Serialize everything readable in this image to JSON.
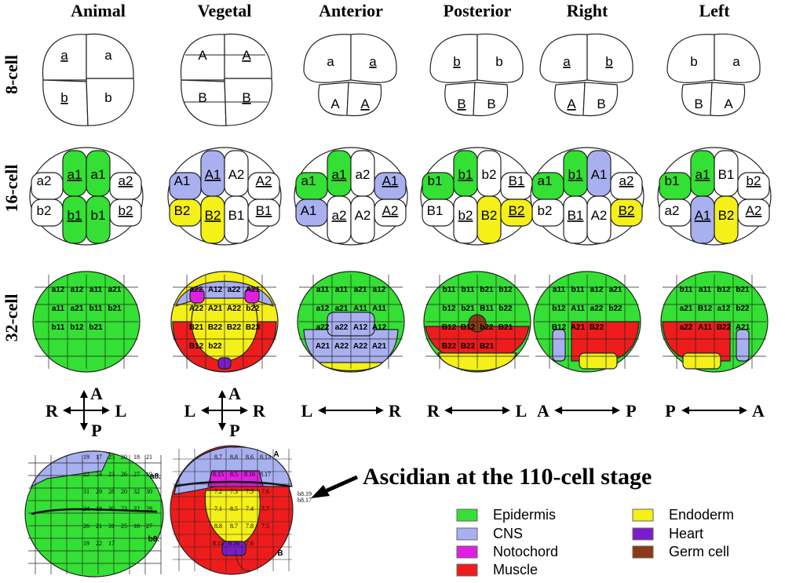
{
  "columns": [
    "Animal",
    "Vegetal",
    "Anterior",
    "Posterior",
    "Right",
    "Left"
  ],
  "rows": [
    "8-cell",
    "16-cell",
    "32-cell"
  ],
  "colors": {
    "epidermis": "#33e033",
    "cns": "#a8b0f0",
    "notochord": "#e020e0",
    "muscle": "#ee1c1c",
    "endoderm": "#f4f018",
    "heart": "#7a1ccc",
    "germ": "#8a3a18",
    "white": "#ffffff"
  },
  "axes": [
    {
      "type": "cross",
      "h": [
        "R",
        "L"
      ],
      "v": [
        "A",
        "P"
      ]
    },
    {
      "type": "cross",
      "h": [
        "L",
        "R"
      ],
      "v": [
        "A",
        "P"
      ]
    },
    {
      "type": "line",
      "ends": [
        "L",
        "R"
      ]
    },
    {
      "type": "line",
      "ends": [
        "R",
        "L"
      ]
    },
    {
      "type": "line",
      "ends": [
        "A",
        "P"
      ]
    },
    {
      "type": "line",
      "ends": [
        "P",
        "A"
      ]
    }
  ],
  "title": "Ascidian at the 110-cell stage",
  "legend": [
    {
      "label": "Epidermis",
      "color": "#33e033"
    },
    {
      "label": "CNS",
      "color": "#a8b0f0"
    },
    {
      "label": "Notochord",
      "color": "#e020e0"
    },
    {
      "label": "Muscle",
      "color": "#ee1c1c"
    },
    {
      "label": "Endoderm",
      "color": "#f4f018"
    },
    {
      "label": "Heart",
      "color": "#7a1ccc"
    },
    {
      "label": "Germ cell",
      "color": "#8a3a18"
    }
  ],
  "cell8": [
    [
      "a",
      "a",
      "b",
      "b"
    ],
    [
      "A",
      "A",
      "B",
      "B"
    ],
    [
      "a",
      "a",
      "A",
      "A"
    ],
    [
      "b",
      "b",
      "B",
      "B"
    ],
    [
      "a",
      "b",
      "A",
      "B"
    ],
    [
      "b",
      "a",
      "B",
      "A"
    ]
  ],
  "cell16": [
    [
      "a2",
      "a1",
      "a1",
      "a2",
      "b2",
      "b1",
      "b1",
      "b2"
    ],
    [
      "A1",
      "A1",
      "A2",
      "A2",
      "B2",
      "B2",
      "B1",
      "B1"
    ],
    [
      "a1",
      "a1",
      "a2",
      "A1",
      "A1",
      "a2",
      "A2",
      "A2"
    ],
    [
      "b1",
      "b1",
      "b2",
      "B1",
      "B1",
      "b2",
      "B2",
      "B2"
    ],
    [
      "a1",
      "b1",
      "A1",
      "a2",
      "b2",
      "B1",
      "A2",
      "B2"
    ],
    [
      "b1",
      "a1",
      "B1",
      "b2",
      "a2",
      "A1",
      "B2",
      "A2"
    ]
  ],
  "cell32": [
    [
      "a12",
      "a12",
      "a11",
      "a21",
      "a11",
      "a21",
      "b11",
      "b21",
      "b11",
      "b12",
      "b21"
    ],
    [
      "a22",
      "A12",
      "a22",
      "A21",
      "A22",
      "A21",
      "A22",
      "b22",
      "B21",
      "B22",
      "B22",
      "B23",
      "B12",
      "b22"
    ],
    [
      "a11",
      "a11",
      "a21",
      "a12",
      "a12",
      "a21",
      "A11",
      "A11",
      "a22",
      "a22",
      "A12",
      "A12",
      "A21",
      "A22",
      "A22",
      "A21"
    ],
    [
      "b11",
      "b11",
      "b21",
      "b12",
      "b12",
      "b21",
      "B11",
      "b22",
      "B12",
      "B12",
      "b22",
      "B21",
      "B22",
      "B22",
      "B21"
    ],
    [
      "a11",
      "b11",
      "a12",
      "a21",
      "b12",
      "A11",
      "a22",
      "b22",
      "B12",
      "A21",
      "B22"
    ],
    [
      "b11",
      "a11",
      "b12",
      "b21",
      "a21",
      "B12",
      "a12",
      "b22",
      "a22",
      "A11",
      "B22",
      "A21"
    ]
  ],
  "e110": {
    "animal_labels": [
      "a8.",
      "b8."
    ],
    "animal_nums": [
      "19",
      "17",
      "25",
      "20",
      "18",
      "21",
      "22",
      "24",
      "23",
      "26",
      "27",
      "19",
      "31",
      "29",
      "28",
      "20",
      "32",
      "30",
      "24",
      "18",
      "30",
      "23",
      "32",
      "29",
      "26",
      "21",
      "31",
      "25",
      "18",
      "27",
      "19",
      "22",
      "17"
    ],
    "vegetal_labels": [
      "A",
      "B"
    ],
    "vegetal_nums": [
      "8.7",
      "8.8",
      "8.6",
      "8.13",
      "8.15",
      "8.5",
      "8.16",
      "8.17",
      "7.2",
      "7.3",
      "7.5",
      "7.6",
      "7.1",
      "8.5",
      "7.4",
      "7.7",
      "8.8",
      "8.7",
      "7.8",
      "7.5",
      "8.15",
      "8.16",
      "7.6"
    ],
    "vegetal_side": [
      "b8.19",
      "b8.17"
    ]
  }
}
